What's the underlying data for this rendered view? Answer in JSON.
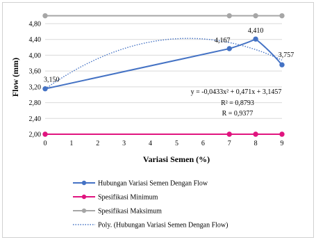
{
  "chart_data": {
    "type": "line",
    "xlabel": "Variasi Semen (%)",
    "ylabel": "Flow (mm)",
    "xlim": [
      0,
      9
    ],
    "ylim": [
      2.0,
      4.8
    ],
    "x_ticks": [
      "0",
      "1",
      "2",
      "3",
      "4",
      "5",
      "6",
      "7",
      "8",
      "9"
    ],
    "y_ticks": [
      "2,00",
      "2,40",
      "2,80",
      "3,20",
      "3,60",
      "4,00",
      "4,40",
      "4,80"
    ],
    "grid": "horizontal",
    "series": [
      {
        "name": "Hubungan Variasi Semen Dengan Flow",
        "color": "#4472C4",
        "x": [
          0,
          7,
          8,
          9
        ],
        "y": [
          3.15,
          4.167,
          4.41,
          3.757
        ],
        "data_labels": [
          "3,150",
          "4,167",
          "4,410",
          "3,757"
        ]
      },
      {
        "name": "Spesifikasi Minimum",
        "color": "#E0147F",
        "x": [
          0,
          7,
          8,
          9
        ],
        "y": [
          2.0,
          2.0,
          2.0,
          2.0
        ]
      },
      {
        "name": "Spesifikasi Maksimum",
        "color": "#A6A6A6",
        "x": [
          0,
          7,
          8,
          9
        ],
        "y": [
          5.0,
          5.0,
          5.0,
          5.0
        ]
      }
    ],
    "trendline": {
      "name": "Poly. (Hubungan Variasi Semen Dengan Flow)",
      "color": "#4472C4",
      "coefficients": [
        -0.0433,
        0.471,
        3.1457
      ]
    },
    "annotations": [
      "y = -0,0433x² + 0,471x + 3,1457",
      "R² = 0,8793",
      "R = 0,9377"
    ],
    "legend_position": "bottom"
  }
}
